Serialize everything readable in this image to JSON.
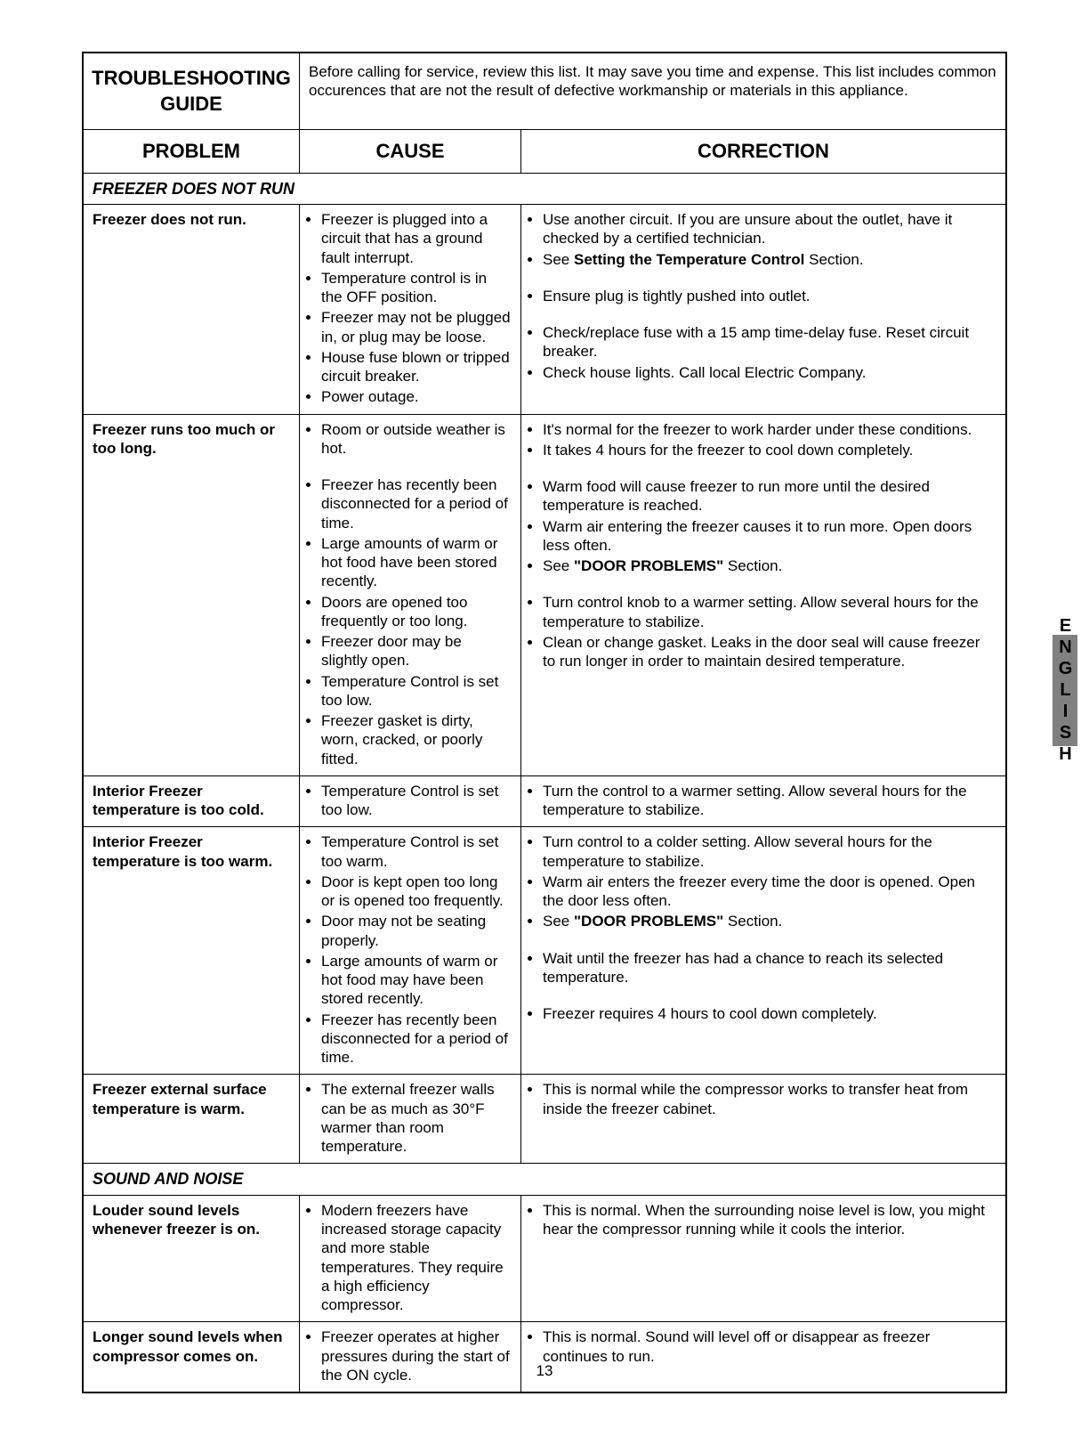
{
  "page_number": "13",
  "side_tab": "ENGLISH",
  "title": "TROUBLESHOOTING GUIDE",
  "intro": "Before calling for service, review this list. It may save you time and expense. This list includes common occurences that are not the result of defective workmanship or materials in this appliance.",
  "headers": {
    "problem": "PROBLEM",
    "cause": "CAUSE",
    "correction": "CORRECTION"
  },
  "sections": [
    {
      "title": "FREEZER DOES NOT RUN",
      "rows": [
        {
          "problem": "Freezer does not run.",
          "causes": [
            "Freezer is plugged into a circuit that has a ground fault interrupt.",
            "Temperature control is in the OFF position.",
            "Freezer may not be plugged in, or plug may be loose.",
            "House fuse blown or tripped circuit breaker.",
            "Power outage."
          ],
          "corrections": [
            "Use another circuit. If you are unsure about the outlet, have it checked by a certified technician.",
            "See <span class=\"b\">Setting the Temperature Control</span> Section.",
            "Ensure plug is tightly pushed into outlet.",
            "Check/replace fuse with a 15 amp time-delay fuse. Reset circuit breaker.",
            "Check house lights. Call local Electric Company."
          ],
          "cause_spacers": [],
          "corr_spacers": [
            2,
            3
          ]
        },
        {
          "problem": "Freezer runs too much or too long.",
          "causes": [
            "Room or outside weather is hot.",
            "Freezer has recently been disconnected for a period of time.",
            "Large amounts of warm or hot food have been stored recently.",
            "Doors are opened too frequently or too long.",
            "Freezer door may be slightly open.",
            "Temperature Control is set too low.",
            "Freezer gasket is dirty, worn, cracked, or poorly fitted."
          ],
          "corrections": [
            "It's normal for the freezer to work harder under these conditions.",
            "It takes 4 hours for the freezer to cool down completely.",
            "Warm food will cause freezer to run more until the desired temperature is reached.",
            "Warm air entering the freezer causes it to run more. Open doors less often.",
            "See <span class=\"b\">\"DOOR PROBLEMS\"</span> Section.",
            "Turn control knob to a warmer setting. Allow several hours for the temperature to stabilize.",
            "Clean or change gasket. Leaks in the door seal will cause freezer to run longer in order to maintain desired temperature."
          ],
          "cause_spacers": [
            1
          ],
          "corr_spacers": [
            2,
            5
          ]
        },
        {
          "problem": "Interior Freezer temperature is too cold.",
          "causes": [
            "Temperature Control is set too low."
          ],
          "corrections": [
            "Turn the control to a warmer setting. Allow several hours for the temperature to stabilize."
          ],
          "cause_spacers": [],
          "corr_spacers": []
        },
        {
          "problem": "Interior Freezer temperature is too warm.",
          "causes": [
            "Temperature Control is set too warm.",
            "Door is kept open too long or is opened too frequently.",
            "Door may not be seating properly.",
            "Large amounts of warm or hot food may have been stored recently.",
            "Freezer has recently been disconnected for a period of time."
          ],
          "corrections": [
            "Turn control to a colder setting. Allow several hours for the temperature to stabilize.",
            "Warm air enters the freezer every time the door is opened. Open the door less often.",
            "See <span class=\"b\">\"DOOR PROBLEMS\"</span> Section.",
            "Wait until the freezer has had a chance to reach its selected temperature.",
            "Freezer requires 4 hours to cool down completely."
          ],
          "cause_spacers": [],
          "corr_spacers": [
            3,
            4
          ]
        },
        {
          "problem": "Freezer external surface temperature is warm.",
          "causes": [
            "The external freezer walls can be as much as 30°F warmer than room temperature."
          ],
          "corrections": [
            "This is normal while the compressor works to transfer heat from inside the freezer cabinet."
          ],
          "cause_spacers": [],
          "corr_spacers": []
        }
      ]
    },
    {
      "title": "SOUND AND NOISE",
      "rows": [
        {
          "problem": "Louder sound levels whenever freezer is on.",
          "causes": [
            "Modern freezers have increased storage capacity and more stable  temperatures. They require a high efficiency compressor."
          ],
          "corrections": [
            "This is normal. When the surrounding noise level is low, you might hear the compressor running while it cools the interior."
          ],
          "cause_spacers": [],
          "corr_spacers": []
        },
        {
          "problem": "Longer sound levels when compressor comes on.",
          "causes": [
            "Freezer operates at higher pressures during the start of the ON cycle."
          ],
          "corrections": [
            "This is normal. Sound will level off or disappear as freezer continues to run."
          ],
          "cause_spacers": [],
          "corr_spacers": []
        }
      ]
    }
  ]
}
